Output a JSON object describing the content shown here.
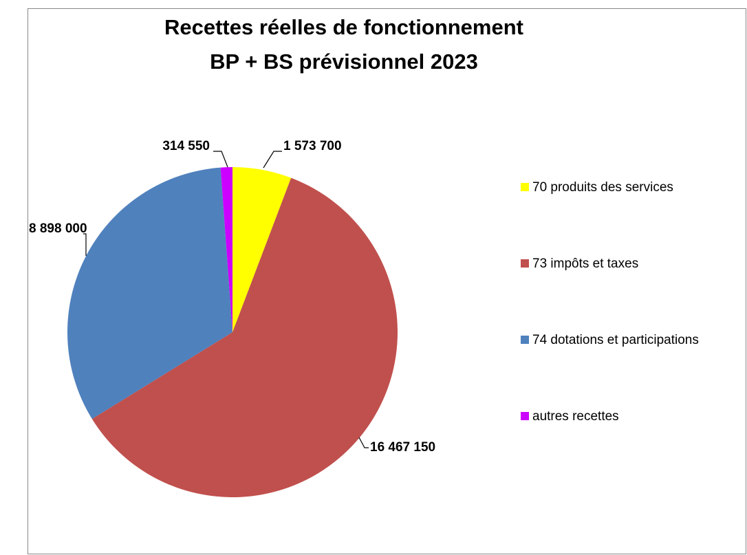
{
  "chart_data": {
    "type": "pie",
    "title": "Recettes réelles de fonctionnement",
    "subtitle": "BP + BS prévisionnel 2023",
    "categories": [
      "70 produits des services",
      "73 impôts et taxes",
      "74 dotations et participations",
      "autres recettes"
    ],
    "values": [
      1573700,
      16467150,
      8898000,
      314550
    ],
    "value_labels": [
      "1 573 700",
      "16 467 150",
      "8 898 000",
      "314 550"
    ],
    "colors": [
      "#ffff00",
      "#c0504d",
      "#4f81bd",
      "#cc00ff"
    ],
    "legend": "right"
  }
}
